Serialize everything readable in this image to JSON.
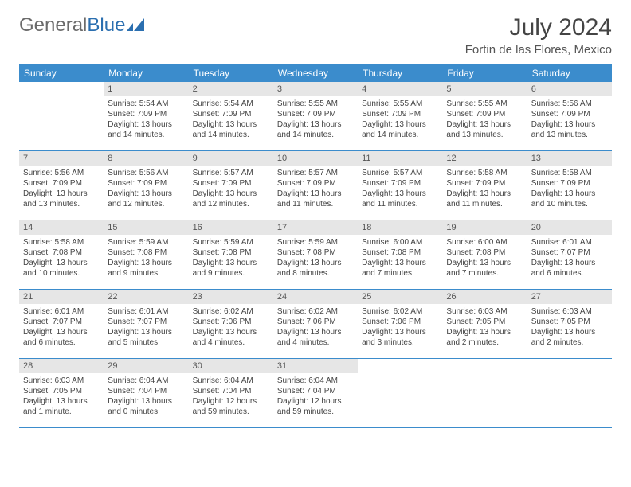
{
  "brand": {
    "part1": "General",
    "part2": "Blue"
  },
  "title": {
    "month": "July 2024",
    "location": "Fortin de las Flores, Mexico"
  },
  "colors": {
    "header_bg": "#3b8ccc",
    "header_fg": "#ffffff",
    "daynum_bg": "#e6e6e6",
    "rule": "#3b8ccc",
    "brand_gray": "#6b6b6b",
    "brand_blue": "#2b6fb0"
  },
  "day_headers": [
    "Sunday",
    "Monday",
    "Tuesday",
    "Wednesday",
    "Thursday",
    "Friday",
    "Saturday"
  ],
  "first_weekday": 1,
  "days": [
    {
      "n": 1,
      "sunrise": "5:54 AM",
      "sunset": "7:09 PM",
      "daylight": "13 hours and 14 minutes."
    },
    {
      "n": 2,
      "sunrise": "5:54 AM",
      "sunset": "7:09 PM",
      "daylight": "13 hours and 14 minutes."
    },
    {
      "n": 3,
      "sunrise": "5:55 AM",
      "sunset": "7:09 PM",
      "daylight": "13 hours and 14 minutes."
    },
    {
      "n": 4,
      "sunrise": "5:55 AM",
      "sunset": "7:09 PM",
      "daylight": "13 hours and 14 minutes."
    },
    {
      "n": 5,
      "sunrise": "5:55 AM",
      "sunset": "7:09 PM",
      "daylight": "13 hours and 13 minutes."
    },
    {
      "n": 6,
      "sunrise": "5:56 AM",
      "sunset": "7:09 PM",
      "daylight": "13 hours and 13 minutes."
    },
    {
      "n": 7,
      "sunrise": "5:56 AM",
      "sunset": "7:09 PM",
      "daylight": "13 hours and 13 minutes."
    },
    {
      "n": 8,
      "sunrise": "5:56 AM",
      "sunset": "7:09 PM",
      "daylight": "13 hours and 12 minutes."
    },
    {
      "n": 9,
      "sunrise": "5:57 AM",
      "sunset": "7:09 PM",
      "daylight": "13 hours and 12 minutes."
    },
    {
      "n": 10,
      "sunrise": "5:57 AM",
      "sunset": "7:09 PM",
      "daylight": "13 hours and 11 minutes."
    },
    {
      "n": 11,
      "sunrise": "5:57 AM",
      "sunset": "7:09 PM",
      "daylight": "13 hours and 11 minutes."
    },
    {
      "n": 12,
      "sunrise": "5:58 AM",
      "sunset": "7:09 PM",
      "daylight": "13 hours and 11 minutes."
    },
    {
      "n": 13,
      "sunrise": "5:58 AM",
      "sunset": "7:09 PM",
      "daylight": "13 hours and 10 minutes."
    },
    {
      "n": 14,
      "sunrise": "5:58 AM",
      "sunset": "7:08 PM",
      "daylight": "13 hours and 10 minutes."
    },
    {
      "n": 15,
      "sunrise": "5:59 AM",
      "sunset": "7:08 PM",
      "daylight": "13 hours and 9 minutes."
    },
    {
      "n": 16,
      "sunrise": "5:59 AM",
      "sunset": "7:08 PM",
      "daylight": "13 hours and 9 minutes."
    },
    {
      "n": 17,
      "sunrise": "5:59 AM",
      "sunset": "7:08 PM",
      "daylight": "13 hours and 8 minutes."
    },
    {
      "n": 18,
      "sunrise": "6:00 AM",
      "sunset": "7:08 PM",
      "daylight": "13 hours and 7 minutes."
    },
    {
      "n": 19,
      "sunrise": "6:00 AM",
      "sunset": "7:08 PM",
      "daylight": "13 hours and 7 minutes."
    },
    {
      "n": 20,
      "sunrise": "6:01 AM",
      "sunset": "7:07 PM",
      "daylight": "13 hours and 6 minutes."
    },
    {
      "n": 21,
      "sunrise": "6:01 AM",
      "sunset": "7:07 PM",
      "daylight": "13 hours and 6 minutes."
    },
    {
      "n": 22,
      "sunrise": "6:01 AM",
      "sunset": "7:07 PM",
      "daylight": "13 hours and 5 minutes."
    },
    {
      "n": 23,
      "sunrise": "6:02 AM",
      "sunset": "7:06 PM",
      "daylight": "13 hours and 4 minutes."
    },
    {
      "n": 24,
      "sunrise": "6:02 AM",
      "sunset": "7:06 PM",
      "daylight": "13 hours and 4 minutes."
    },
    {
      "n": 25,
      "sunrise": "6:02 AM",
      "sunset": "7:06 PM",
      "daylight": "13 hours and 3 minutes."
    },
    {
      "n": 26,
      "sunrise": "6:03 AM",
      "sunset": "7:05 PM",
      "daylight": "13 hours and 2 minutes."
    },
    {
      "n": 27,
      "sunrise": "6:03 AM",
      "sunset": "7:05 PM",
      "daylight": "13 hours and 2 minutes."
    },
    {
      "n": 28,
      "sunrise": "6:03 AM",
      "sunset": "7:05 PM",
      "daylight": "13 hours and 1 minute."
    },
    {
      "n": 29,
      "sunrise": "6:04 AM",
      "sunset": "7:04 PM",
      "daylight": "13 hours and 0 minutes."
    },
    {
      "n": 30,
      "sunrise": "6:04 AM",
      "sunset": "7:04 PM",
      "daylight": "12 hours and 59 minutes."
    },
    {
      "n": 31,
      "sunrise": "6:04 AM",
      "sunset": "7:04 PM",
      "daylight": "12 hours and 59 minutes."
    }
  ],
  "labels": {
    "sunrise": "Sunrise:",
    "sunset": "Sunset:",
    "daylight": "Daylight:"
  }
}
